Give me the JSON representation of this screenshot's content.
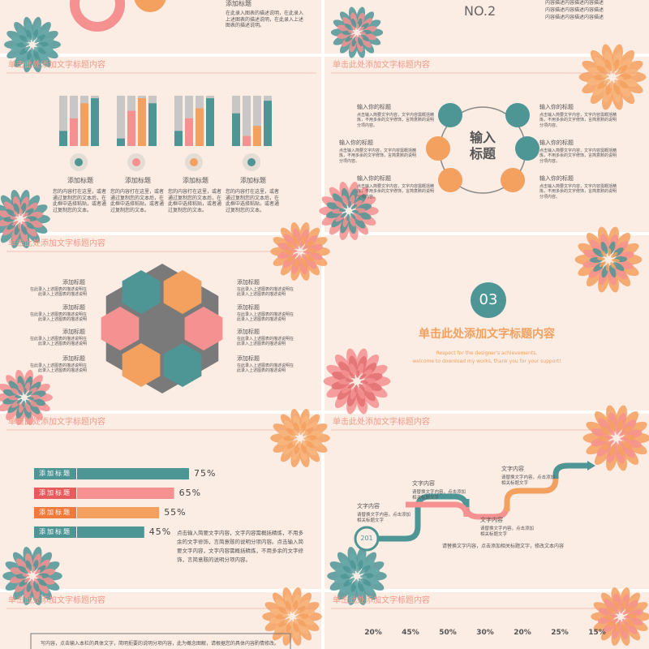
{
  "slide_a": {
    "title": "添加标题",
    "desc": "在此录入图表的描述说明，在此录入上述图表的描述说明，在此录入上述图表的描述说明。"
  },
  "slide_b": {
    "number": "NO.2",
    "desc": [
      "内容描述内容描述内容描述",
      "内容描述内容描述内容描述",
      "内容描述内容描述内容描述"
    ]
  },
  "columns_slide": {
    "header": "单击此处添加文字标题内容",
    "groups": [
      {
        "label": "添加标题",
        "bars": [
          30,
          55,
          85,
          95
        ],
        "desc": "您的内容打在这里，或者通过复制您的文本后，在此框中选择粘贴，或者通过复制您的文本。"
      },
      {
        "label": "添加标题",
        "bars": [
          15,
          70,
          95,
          85
        ],
        "desc": "您的内容打在这里，或者通过复制您的文本后，在此框中选择粘贴，或者通过复制您的文本。"
      },
      {
        "label": "添加标题",
        "bars": [
          30,
          55,
          75,
          95
        ],
        "desc": "您的内容打在这里，或者通过复制您的文本后，在此框中选择粘贴，或者通过复制您的文本。"
      },
      {
        "label": "添加标题",
        "bars": [
          65,
          20,
          40,
          90
        ],
        "desc": "您的内容打在这里，或者通过复制您的文本后，在此框中选择粘贴，或者通过复制您的文本。"
      }
    ]
  },
  "circle_slide": {
    "header": "单击此处添加文字标题内容",
    "center": "输入标题",
    "items": [
      {
        "title": "输入你的标题",
        "desc": "点击输入简要文字内容，文字内容需概括精炼，不用多余的文字修饰，言简意赅的说明分项内容。"
      },
      {
        "title": "输入你的标题",
        "desc": "点击输入简要文字内容，文字内容需概括精炼，不用多余的文字修饰，言简意赅的说明分项内容。"
      },
      {
        "title": "输入你的标题",
        "desc": "点击输入简要文字内容，文字内容需概括精炼，不用多余的文字修饰，言简意赅的说明分项内容。"
      },
      {
        "title": "输入你的标题",
        "desc": "点击输入简要文字内容，文字内容需概括精炼，不用多余的文字修饰，言简意赅的说明分项内容。"
      },
      {
        "title": "输入你的标题",
        "desc": "点击输入简要文字内容，文字内容需概括精炼，不用多余的文字修饰，言简意赅的说明分项内容。"
      },
      {
        "title": "输入你的标题",
        "desc": "点击输入简要文字内容，文字内容需概括精炼，不用多余的文字修饰，言简意赅的说明分项内容。"
      }
    ]
  },
  "hex_slide": {
    "header": "单击此处添加文字标题内容",
    "items": [
      {
        "title": "添加标题",
        "desc": "在此录入上述图表的描述说明在此录入上述图表的描述说明"
      },
      {
        "title": "添加标题",
        "desc": "在此录入上述图表的描述说明在此录入上述图表的描述说明"
      },
      {
        "title": "添加标题",
        "desc": "在此录入上述图表的描述说明在此录入上述图表的描述说明"
      },
      {
        "title": "添加标题",
        "desc": "在此录入上述图表的描述说明在此录入上述图表的描述说明"
      },
      {
        "title": "添加标题",
        "desc": "在此录入上述图表的描述说明在此录入上述图表的描述说明"
      },
      {
        "title": "添加标题",
        "desc": "在此录入上述图表的描述说明在此录入上述图表的描述说明"
      },
      {
        "title": "添加标题",
        "desc": "在此录入上述图表的描述说明在此录入上述图表的描述说明"
      },
      {
        "title": "添加标题",
        "desc": "在此录入上述图表的描述说明在此录入上述图表的描述说明"
      }
    ]
  },
  "section_slide": {
    "number": "03",
    "title": "单击此处添加文字标题内容",
    "subtitle": [
      "Respect for the designer's achievements,",
      "welcome to download my works, thank you for your support!"
    ]
  },
  "bars_slide": {
    "header": "单击此处添加文字标题内容",
    "labels": [
      "添加标题",
      "添加标题",
      "添加标题",
      "添加标题"
    ],
    "values": [
      75,
      65,
      55,
      45
    ],
    "value_labels": [
      "75%",
      "65%",
      "55%",
      "45%"
    ],
    "desc": "点击输入简要文字内容，文字内容需概括精炼，不用多余的文字修饰，言简意赅的说明分项内容。点击输入简要文字内容，文字内容需概括精炼，不用多余的文字修饰，言简意赅的说明分项内容。"
  },
  "steps_slide": {
    "header": "单击此处添加文字标题内容",
    "start": "201",
    "steps": [
      {
        "title": "文字内容",
        "desc": "请替换文字内容，点击添加相关标题文字"
      },
      {
        "title": "文字内容",
        "desc": "请替换文字内容，点击添加相关标题文字"
      },
      {
        "title": "文字内容",
        "desc": "请替换文字内容，点击添加相关标题文字"
      },
      {
        "title": "文字内容",
        "desc": "请替换文字内容，点击添加相关标题文字"
      }
    ],
    "footer": "请替换文字内容，点击添加相关标题文字，修改文本内容"
  },
  "text_slide": {
    "header": "单击此处添加文字标题内容",
    "body": "写内容，点击输入本栏的具体文字，简明扼要的说明分项内容，此为概念图解，请根据您的具体内容酌情修改。"
  },
  "percent_slide": {
    "header": "单击此处添加文字标题内容",
    "values": [
      "20%",
      "45%",
      "50%",
      "30%",
      "20%",
      "25%",
      "15%"
    ]
  }
}
